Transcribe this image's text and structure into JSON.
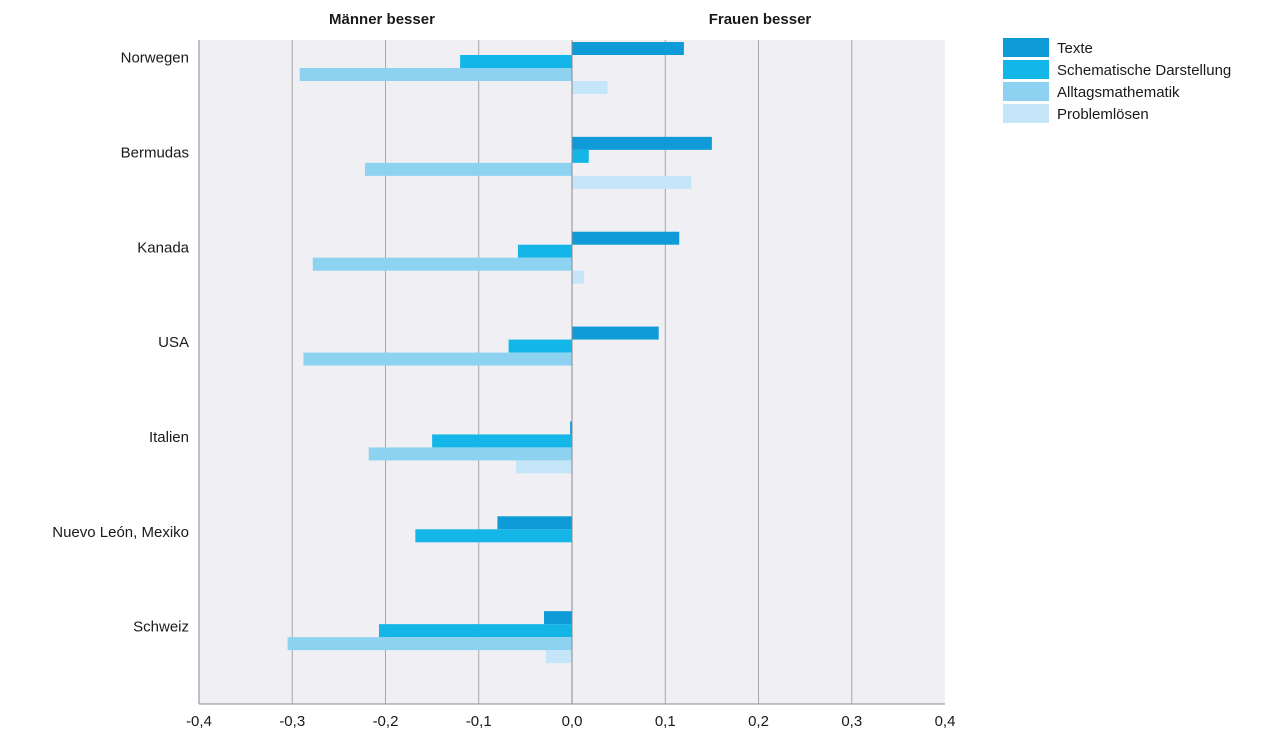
{
  "chart_data": {
    "type": "bar",
    "orientation": "horizontal",
    "headers": {
      "left": "Männer besser",
      "right": "Frauen besser"
    },
    "categories": [
      "Norwegen",
      "Bermudas",
      "Kanada",
      "USA",
      "Italien",
      "Nuevo León, Mexiko",
      "Schweiz"
    ],
    "series": [
      {
        "name": "Texte",
        "color": "#0f9bd7",
        "values": [
          0.12,
          0.15,
          0.115,
          0.093,
          -0.002,
          -0.08,
          -0.03
        ]
      },
      {
        "name": "Schematische Darstellung",
        "color": "#14b6e8",
        "values": [
          -0.12,
          0.018,
          -0.058,
          -0.068,
          -0.15,
          -0.168,
          -0.207
        ]
      },
      {
        "name": "Alltagsmathematik",
        "color": "#8ed2f1",
        "values": [
          -0.292,
          -0.222,
          -0.278,
          -0.288,
          -0.218,
          0,
          -0.305
        ]
      },
      {
        "name": "Problemlösen",
        "color": "#c5e6f8",
        "values": [
          0.038,
          0.128,
          0.013,
          0,
          -0.06,
          0,
          -0.028
        ]
      }
    ],
    "xlim": [
      -0.4,
      0.4
    ],
    "xticks": [
      "-0,4",
      "-0,3",
      "-0,2",
      "-0,1",
      "0,0",
      "0,1",
      "0,2",
      "0,3",
      "0,4"
    ],
    "grid": true,
    "legend_position": "right"
  }
}
